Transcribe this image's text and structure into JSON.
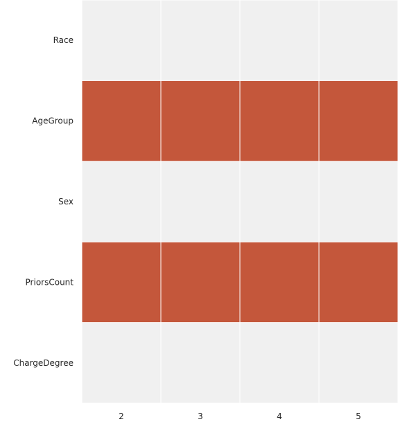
{
  "chart_data": {
    "type": "heatmap",
    "title": "",
    "xlabel": "",
    "ylabel": "",
    "x": [
      "2",
      "3",
      "4",
      "5"
    ],
    "y": [
      "Race",
      "AgeGroup",
      "Sex",
      "PriorsCount",
      "ChargeDegree"
    ],
    "values": [
      [
        0,
        0,
        0,
        0
      ],
      [
        1,
        1,
        1,
        1
      ],
      [
        0,
        0,
        0,
        0
      ],
      [
        1,
        1,
        1,
        1
      ],
      [
        0,
        0,
        0,
        0
      ]
    ],
    "colors": {
      "active": "#c4573b",
      "inactive": "#f0f0f0",
      "grid": "#ffffff"
    },
    "legend": "none",
    "grid": true
  }
}
